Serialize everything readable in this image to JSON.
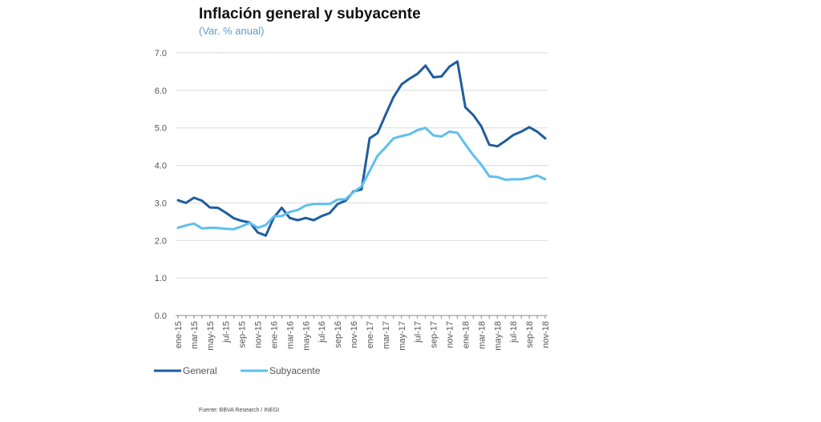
{
  "chart_data": {
    "type": "line",
    "title": "Inflación general y subyacente",
    "subtitle": "(Var. % anual)",
    "xlabel": "",
    "ylabel": "",
    "ylim": [
      0,
      7
    ],
    "yticks": [
      "0.0",
      "1.0",
      "2.0",
      "3.0",
      "4.0",
      "5.0",
      "6.0",
      "7.0"
    ],
    "grid": true,
    "legend_position": "bottom-left",
    "categories": [
      "ene-15",
      "feb-15",
      "mar-15",
      "abr-15",
      "may-15",
      "jun-15",
      "jul-15",
      "ago-15",
      "sep-15",
      "oct-15",
      "nov-15",
      "dic-15",
      "ene-16",
      "feb-16",
      "mar-16",
      "abr-16",
      "may-16",
      "jun-16",
      "jul-16",
      "ago-16",
      "sep-16",
      "oct-16",
      "nov-16",
      "dic-16",
      "ene-17",
      "feb-17",
      "mar-17",
      "abr-17",
      "may-17",
      "jun-17",
      "jul-17",
      "ago-17",
      "sep-17",
      "oct-17",
      "nov-17",
      "dic-17",
      "ene-18",
      "feb-18",
      "mar-18",
      "abr-18",
      "may-18",
      "jun-18",
      "jul-18",
      "ago-18",
      "sep-18",
      "oct-18",
      "nov-18"
    ],
    "tick_labels": [
      "ene-15",
      "mar-15",
      "may-15",
      "jul-15",
      "sep-15",
      "nov-15",
      "ene-16",
      "mar-16",
      "may-16",
      "jul-16",
      "sep-16",
      "nov-16",
      "ene-17",
      "mar-17",
      "may-17",
      "jul-17",
      "sep-17",
      "nov-17",
      "ene-18",
      "mar-18",
      "may-18",
      "jul-18",
      "sep-18",
      "nov-18"
    ],
    "series": [
      {
        "name": "General",
        "color": "#1f5d9e",
        "values": [
          3.07,
          3.0,
          3.14,
          3.06,
          2.88,
          2.87,
          2.74,
          2.59,
          2.52,
          2.48,
          2.21,
          2.13,
          2.61,
          2.87,
          2.6,
          2.54,
          2.6,
          2.54,
          2.65,
          2.73,
          2.97,
          3.06,
          3.31,
          3.36,
          4.72,
          4.86,
          5.35,
          5.82,
          6.16,
          6.31,
          6.44,
          6.66,
          6.35,
          6.37,
          6.63,
          6.77,
          5.55,
          5.34,
          5.04,
          4.55,
          4.51,
          4.65,
          4.81,
          4.9,
          5.02,
          4.9,
          4.72
        ]
      },
      {
        "name": "Subyacente",
        "color": "#5fbfef",
        "values": [
          2.34,
          2.4,
          2.45,
          2.32,
          2.34,
          2.33,
          2.31,
          2.3,
          2.38,
          2.47,
          2.34,
          2.41,
          2.64,
          2.65,
          2.76,
          2.81,
          2.93,
          2.97,
          2.97,
          2.97,
          3.09,
          3.1,
          3.29,
          3.44,
          3.85,
          4.26,
          4.48,
          4.72,
          4.78,
          4.83,
          4.94,
          5.0,
          4.8,
          4.77,
          4.9,
          4.87,
          4.56,
          4.27,
          4.02,
          3.71,
          3.69,
          3.62,
          3.63,
          3.63,
          3.67,
          3.73,
          3.63
        ]
      }
    ]
  },
  "source": "Fuente: BBVA Research / INEGI"
}
